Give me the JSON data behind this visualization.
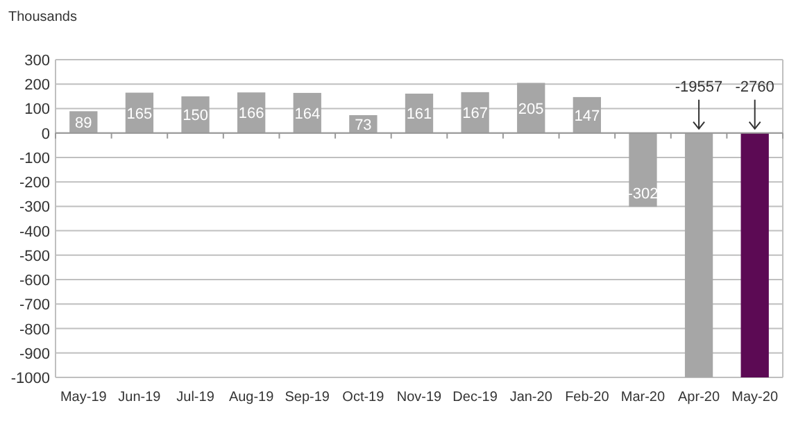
{
  "chart_data": {
    "type": "bar",
    "ylabel": "Thousands",
    "categories": [
      "May-19",
      "Jun-19",
      "Jul-19",
      "Aug-19",
      "Sep-19",
      "Oct-19",
      "Nov-19",
      "Dec-19",
      "Jan-20",
      "Feb-20",
      "Mar-20",
      "Apr-20",
      "May-20"
    ],
    "values": [
      89,
      165,
      150,
      166,
      164,
      73,
      161,
      167,
      205,
      147,
      -302,
      -1000,
      -1000
    ],
    "colors": [
      "#a6a6a6",
      "#a6a6a6",
      "#a6a6a6",
      "#a6a6a6",
      "#a6a6a6",
      "#a6a6a6",
      "#a6a6a6",
      "#a6a6a6",
      "#a6a6a6",
      "#a6a6a6",
      "#a6a6a6",
      "#a6a6a6",
      "#5c0a54"
    ],
    "value_labels": [
      "89",
      "165",
      "150",
      "166",
      "164",
      "73",
      "161",
      "167",
      "205",
      "147",
      "-302",
      null,
      null
    ],
    "annotations": [
      {
        "text": "-19557",
        "x": "Apr-20",
        "y": 0
      },
      {
        "text": "-2760",
        "x": "May-20",
        "y": 0
      }
    ],
    "ylim": [
      -1000,
      300
    ],
    "yticks": [
      -1000,
      -900,
      -800,
      -700,
      -600,
      -500,
      -400,
      -300,
      -200,
      -100,
      0,
      100,
      200,
      300
    ],
    "grid": "y"
  }
}
